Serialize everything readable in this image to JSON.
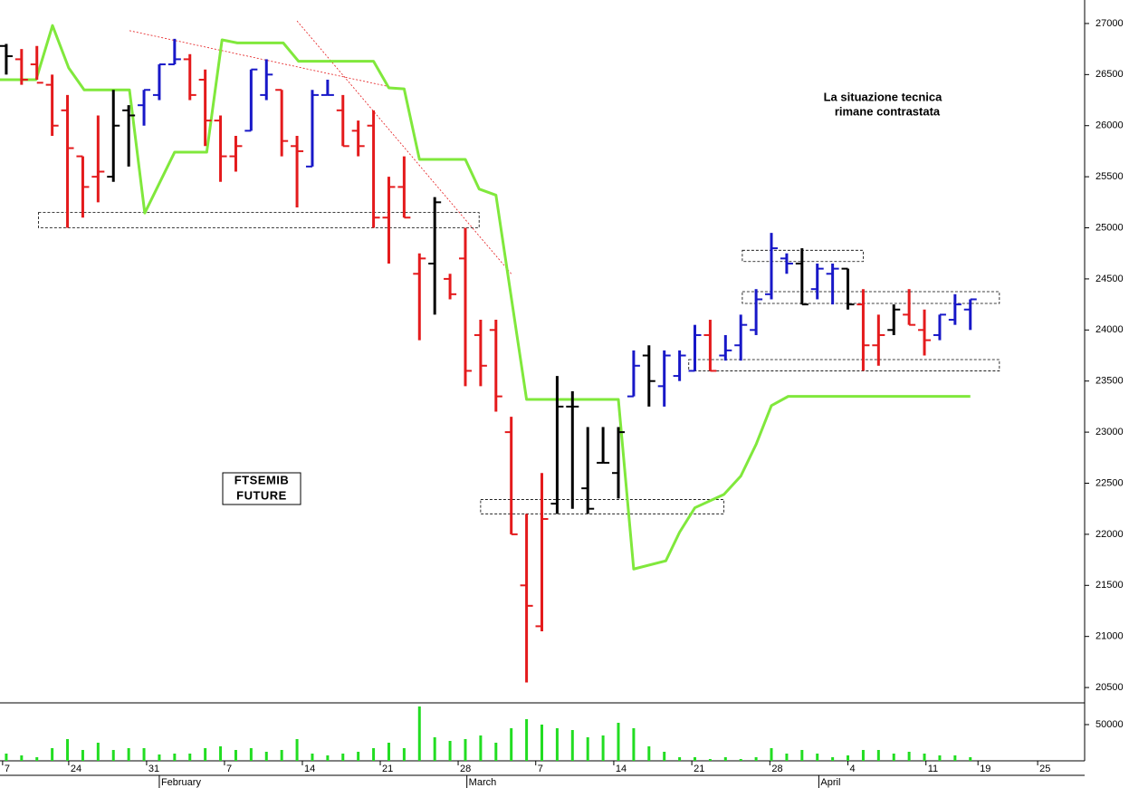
{
  "chart_data": {
    "type": "ohlc",
    "palette": {
      "r": "#e41a1c",
      "b": "#1818c8",
      "k": "#000000"
    },
    "open": [
      26780,
      26650,
      26600,
      26400,
      26150,
      25700,
      25500,
      25500,
      26150,
      26200,
      26300,
      26600,
      26650,
      26450,
      26050,
      25700,
      25950,
      26300,
      26350,
      25800,
      25600,
      26300,
      26150,
      25950,
      26000,
      25100,
      25400,
      24550,
      24650,
      24500,
      24700,
      23950,
      24000,
      23000,
      21500,
      21100,
      22300,
      23250,
      22450,
      22700,
      22600,
      23350,
      23750,
      23450,
      23550,
      23600,
      23950,
      23750,
      23850,
      24000,
      24350,
      24700,
      24650,
      24400,
      24550,
      24600,
      24250,
      23850,
      24000,
      24150,
      24000,
      23950,
      24100,
      24200
    ],
    "high": [
      26800,
      26750,
      26780,
      26500,
      26300,
      25700,
      26100,
      26350,
      26200,
      26350,
      26600,
      26850,
      26700,
      26550,
      26100,
      25900,
      26550,
      26650,
      26350,
      25900,
      26350,
      26450,
      26300,
      26050,
      26150,
      25500,
      25700,
      24750,
      25300,
      24550,
      25000,
      24100,
      24100,
      23150,
      22200,
      22600,
      23550,
      23400,
      23050,
      23050,
      23050,
      23800,
      23850,
      23800,
      23800,
      24050,
      24100,
      23950,
      24150,
      24400,
      24950,
      24750,
      24800,
      24650,
      24650,
      24600,
      24400,
      24150,
      24250,
      24400,
      24200,
      24150,
      24350,
      24300
    ],
    "low": [
      26500,
      26400,
      26450,
      25900,
      25000,
      25100,
      25250,
      25450,
      25600,
      26000,
      26250,
      26600,
      26250,
      25800,
      25450,
      25550,
      25950,
      26250,
      25700,
      25200,
      25600,
      26300,
      25800,
      25700,
      25000,
      24650,
      25100,
      23900,
      24150,
      24300,
      23450,
      23450,
      23200,
      22000,
      20550,
      21050,
      22200,
      22250,
      22200,
      22700,
      22350,
      23350,
      23250,
      23250,
      23500,
      23600,
      23600,
      23700,
      23700,
      23950,
      24300,
      24550,
      24250,
      24300,
      24250,
      24200,
      23600,
      23650,
      23950,
      24050,
      23750,
      23900,
      24050,
      24000
    ],
    "close": [
      26680,
      26450,
      26420,
      26000,
      25780,
      25400,
      25550,
      26000,
      26100,
      26350,
      26600,
      26650,
      26300,
      26050,
      25700,
      25800,
      26550,
      26500,
      25850,
      25750,
      26300,
      26300,
      25800,
      25800,
      25100,
      25400,
      25100,
      24700,
      25250,
      24350,
      23600,
      23650,
      23350,
      22000,
      21300,
      22150,
      23250,
      23250,
      22250,
      22700,
      23000,
      23650,
      23500,
      23750,
      23750,
      23950,
      23600,
      23800,
      24050,
      24300,
      24800,
      24650,
      24250,
      24600,
      24600,
      24250,
      23850,
      23950,
      24200,
      24050,
      23900,
      24150,
      24250,
      24300
    ],
    "colors": [
      "k",
      "r",
      "r",
      "r",
      "r",
      "r",
      "r",
      "k",
      "k",
      "b",
      "b",
      "b",
      "r",
      "r",
      "r",
      "r",
      "b",
      "b",
      "r",
      "r",
      "b",
      "b",
      "r",
      "r",
      "r",
      "r",
      "r",
      "r",
      "k",
      "r",
      "r",
      "r",
      "r",
      "r",
      "r",
      "r",
      "k",
      "k",
      "k",
      "k",
      "k",
      "b",
      "k",
      "b",
      "b",
      "b",
      "r",
      "b",
      "b",
      "b",
      "b",
      "b",
      "k",
      "b",
      "b",
      "k",
      "r",
      "r",
      "k",
      "r",
      "r",
      "b",
      "b",
      "b"
    ],
    "xlim": [
      -0.41,
      70.47
    ],
    "xticks": [
      {
        "value": -0.24,
        "label": "7"
      },
      {
        "value": 4.08,
        "label": "24"
      },
      {
        "value": 9.17,
        "label": "31"
      },
      {
        "value": 14.26,
        "label": "7"
      },
      {
        "value": 19.35,
        "label": "14"
      },
      {
        "value": 24.44,
        "label": "21"
      },
      {
        "value": 29.53,
        "label": "28"
      },
      {
        "value": 34.6,
        "label": "7"
      },
      {
        "value": 39.7,
        "label": "14"
      },
      {
        "value": 44.8,
        "label": "21"
      },
      {
        "value": 49.9,
        "label": "28"
      },
      {
        "value": 55.0,
        "label": "4"
      },
      {
        "value": 60.1,
        "label": "11"
      },
      {
        "value": 63.5,
        "label": "19"
      },
      {
        "value": 67.4,
        "label": "25"
      }
    ],
    "months": [
      {
        "value": 10.0,
        "label": "February"
      },
      {
        "value": 30.1,
        "label": "March"
      },
      {
        "value": 53.1,
        "label": "April"
      }
    ],
    "ylim": [
      20350,
      27230
    ],
    "yticks": [
      20500,
      21000,
      21500,
      22000,
      22500,
      23000,
      23500,
      24000,
      24500,
      25000,
      25500,
      26000,
      26500,
      27000
    ],
    "line": {
      "color": "#80e83c",
      "x": [
        -0.41,
        1.95,
        3.02,
        4.08,
        5.09,
        8.05,
        9.05,
        11.0,
        13.1,
        14.1,
        15.1,
        18.1,
        19.1,
        24.0,
        25.0,
        26.0,
        27.0,
        30.0,
        30.9,
        32.0,
        34.0,
        40.0,
        41.0,
        43.1,
        44.0,
        45.0,
        46.9,
        48.0,
        49.0,
        50.0,
        51.1,
        63.0
      ],
      "values": [
        26450,
        26450,
        26980,
        26565,
        26350,
        26350,
        25145,
        25740,
        25740,
        26840,
        26810,
        26810,
        26630,
        26630,
        26370,
        26360,
        25670,
        25670,
        25380,
        25320,
        23320,
        23320,
        21660,
        21740,
        22020,
        22260,
        22390,
        22570,
        22880,
        23260,
        23350,
        23350
      ]
    },
    "zones": [
      {
        "x": [
          2.1,
          30.9
        ],
        "y": [
          25000,
          25150
        ]
      },
      {
        "x": [
          31.0,
          46.9
        ],
        "y": [
          22200,
          22340
        ]
      },
      {
        "x": [
          48.1,
          56.0
        ],
        "y": [
          24670,
          24780
        ]
      },
      {
        "x": [
          48.1,
          64.9
        ],
        "y": [
          24260,
          24375
        ]
      },
      {
        "x": [
          44.6,
          64.9
        ],
        "y": [
          23600,
          23710
        ]
      }
    ],
    "trendlines": [
      {
        "x": [
          8.05,
          26.0
        ],
        "y": [
          26930,
          26350
        ]
      },
      {
        "x": [
          19.0,
          33.0
        ],
        "y": [
          27025,
          24550
        ]
      }
    ],
    "annotations": [
      "La situazione tecnica",
      "rimane contrastata"
    ],
    "instrument": [
      "FTSEMIB",
      "FUTURE"
    ],
    "volume": {
      "type": "bar",
      "color": "#22dd22",
      "values": [
        10000,
        7500,
        5000,
        17500,
        30000,
        15000,
        25000,
        15000,
        17500,
        17500,
        8750,
        10000,
        10000,
        17500,
        20000,
        15000,
        17500,
        12500,
        15000,
        30000,
        10000,
        7500,
        10000,
        12500,
        17500,
        25000,
        17500,
        75000,
        32500,
        27500,
        30000,
        35000,
        25000,
        45000,
        57500,
        50000,
        45000,
        42500,
        32500,
        35000,
        52500,
        45000,
        20000,
        12500,
        5000,
        5000,
        2500,
        5000,
        2500,
        5000,
        17500,
        10000,
        15000,
        10000,
        5000,
        7500,
        15000,
        15000,
        10000,
        12500,
        10000,
        7500,
        7500,
        5000
      ],
      "ylim": [
        0,
        80000
      ],
      "yticks": [
        50000
      ]
    }
  }
}
